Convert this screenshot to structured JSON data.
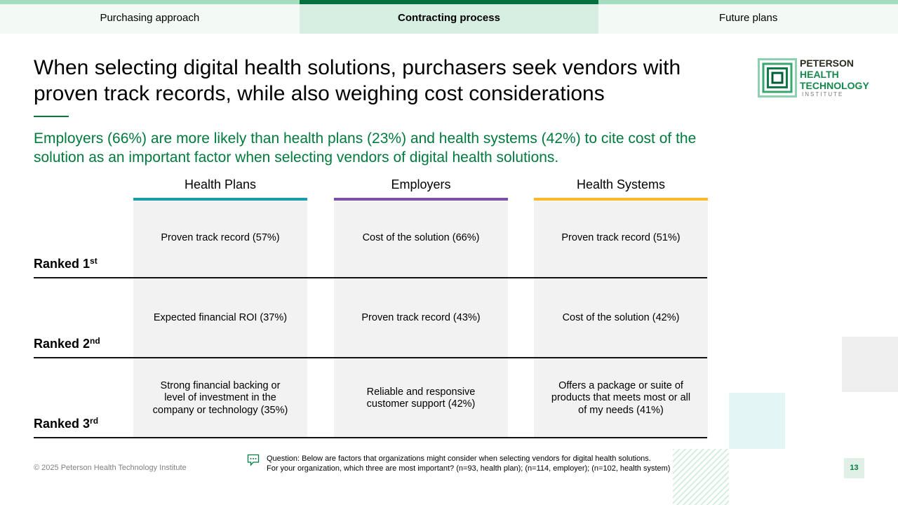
{
  "tabs": [
    "Purchasing approach",
    "Contracting process",
    "Future plans"
  ],
  "title": "When selecting digital health solutions, purchasers seek vendors with proven track records, while also weighing cost considerations",
  "subtitle": "Employers (66%) are more likely than health plans (23%) and health systems (42%) to cite cost of the solution as an important factor when selecting vendors of digital health solutions.",
  "logo": [
    "PETERSON",
    "HEALTH",
    "TECHNOLOGY",
    "INSTITUTE"
  ],
  "table": {
    "columns": [
      "Health Plans",
      "Employers",
      "Health Systems"
    ],
    "rows": [
      {
        "rank": "Ranked 1",
        "suffix": "st",
        "cells": [
          "Proven track record (57%)",
          "Cost of the solution (66%)",
          "Proven track record (51%)"
        ]
      },
      {
        "rank": "Ranked 2",
        "suffix": "nd",
        "cells": [
          "Expected financial ROI (37%)",
          "Proven track record (43%)",
          "Cost of the solution (42%)"
        ]
      },
      {
        "rank": "Ranked 3",
        "suffix": "rd",
        "cells": [
          "Strong financial backing or level of investment in the company or technology (35%)",
          "Reliable and responsive customer support (42%)",
          "Offers a package or suite of products that meets most or all of my needs (41%)"
        ]
      }
    ]
  },
  "footer": {
    "copyright": "© 2025 Peterson Health Technology Institute",
    "question": [
      "Question: Below are factors that organizations might consider when selecting vendors for digital health solutions.",
      "For your organization, which three are most important? (n=93, health plan); (n=114, employer); (n=102, health system)"
    ],
    "page": "13"
  }
}
